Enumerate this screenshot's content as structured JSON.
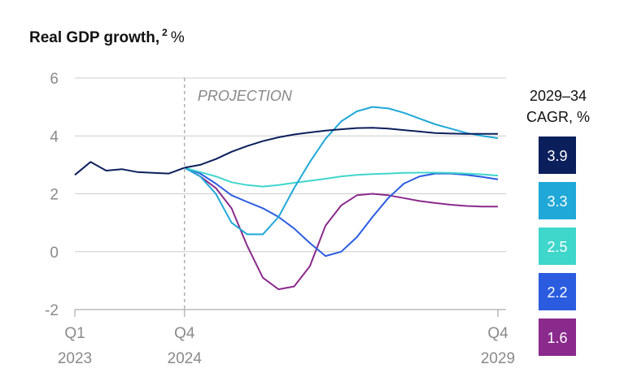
{
  "chart_data": {
    "type": "line",
    "title": "Real GDP growth,",
    "title_superscript": "2",
    "title_unit": "%",
    "ylim": [
      -2,
      6
    ],
    "yticks": [
      {
        "v": 6,
        "label": "6"
      },
      {
        "v": 4,
        "label": "4"
      },
      {
        "v": 2,
        "label": "2"
      },
      {
        "v": 0,
        "label": "0"
      },
      {
        "v": -2,
        "label": "-2"
      }
    ],
    "xlim": [
      0,
      27
    ],
    "xticks": [
      {
        "v": 0,
        "line1": "Q1",
        "line2": "2023"
      },
      {
        "v": 7,
        "line1": "Q4",
        "line2": "2024"
      },
      {
        "v": 27,
        "line1": "Q4",
        "line2": "2029"
      }
    ],
    "projection_start": 7,
    "projection_label": "PROJECTION",
    "grid": true,
    "legend": {
      "title_line1": "2029–34",
      "title_line2": "CAGR, %"
    },
    "history": {
      "color": "#0b1f5c",
      "x": [
        0,
        1,
        2,
        3,
        4,
        5,
        6,
        7
      ],
      "y": [
        2.65,
        3.1,
        2.8,
        2.85,
        2.75,
        2.72,
        2.7,
        2.9
      ]
    },
    "series": [
      {
        "cagr": "3.9",
        "color": "#0b1f5c",
        "x": [
          7,
          8,
          9,
          10,
          11,
          12,
          13,
          14,
          15,
          16,
          17,
          18,
          19,
          20,
          21,
          22,
          23,
          24,
          25,
          26,
          27
        ],
        "y": [
          2.9,
          3.0,
          3.2,
          3.45,
          3.65,
          3.82,
          3.95,
          4.05,
          4.12,
          4.18,
          4.23,
          4.27,
          4.28,
          4.25,
          4.2,
          4.15,
          4.1,
          4.08,
          4.07,
          4.07,
          4.07
        ]
      },
      {
        "cagr": "3.3",
        "color": "#20a8d8",
        "x": [
          7,
          8,
          9,
          10,
          11,
          12,
          13,
          14,
          15,
          16,
          17,
          18,
          19,
          20,
          21,
          22,
          23,
          24,
          25,
          26,
          27
        ],
        "y": [
          2.9,
          2.6,
          2.0,
          1.0,
          0.6,
          0.6,
          1.2,
          2.2,
          3.1,
          3.9,
          4.5,
          4.85,
          5.0,
          4.95,
          4.8,
          4.6,
          4.4,
          4.25,
          4.1,
          4.0,
          3.92
        ]
      },
      {
        "cagr": "2.5",
        "color": "#3fd6cc",
        "x": [
          7,
          8,
          9,
          10,
          11,
          12,
          13,
          14,
          15,
          16,
          17,
          18,
          19,
          20,
          21,
          22,
          23,
          24,
          25,
          26,
          27
        ],
        "y": [
          2.9,
          2.75,
          2.6,
          2.4,
          2.3,
          2.25,
          2.3,
          2.38,
          2.45,
          2.52,
          2.6,
          2.65,
          2.68,
          2.7,
          2.72,
          2.73,
          2.73,
          2.72,
          2.7,
          2.67,
          2.63
        ]
      },
      {
        "cagr": "2.2",
        "color": "#2b5ce0",
        "x": [
          7,
          8,
          9,
          10,
          11,
          12,
          13,
          14,
          15,
          16,
          17,
          18,
          19,
          20,
          21,
          22,
          23,
          24,
          25,
          26,
          27
        ],
        "y": [
          2.9,
          2.7,
          2.35,
          1.95,
          1.72,
          1.5,
          1.2,
          0.8,
          0.3,
          -0.15,
          0.0,
          0.5,
          1.2,
          1.85,
          2.35,
          2.6,
          2.7,
          2.7,
          2.65,
          2.58,
          2.5
        ]
      },
      {
        "cagr": "1.6",
        "color": "#8a2a8c",
        "x": [
          7,
          8,
          9,
          10,
          11,
          12,
          13,
          14,
          15,
          16,
          17,
          18,
          19,
          20,
          21,
          22,
          23,
          24,
          25,
          26,
          27
        ],
        "y": [
          2.9,
          2.6,
          2.2,
          1.5,
          0.2,
          -0.9,
          -1.3,
          -1.2,
          -0.5,
          0.9,
          1.6,
          1.95,
          2.0,
          1.95,
          1.85,
          1.75,
          1.68,
          1.62,
          1.58,
          1.56,
          1.56
        ]
      }
    ]
  }
}
